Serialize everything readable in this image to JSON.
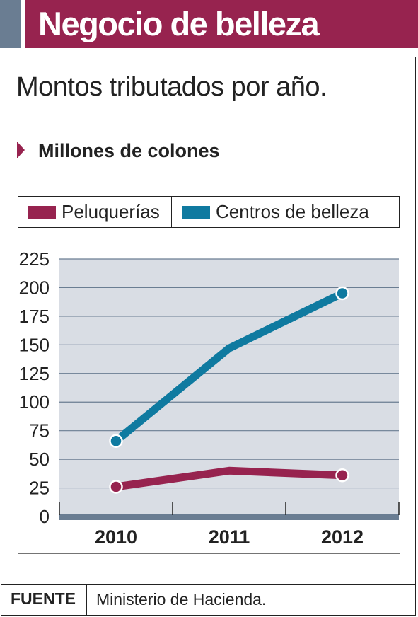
{
  "header": {
    "title": "Negocio de belleza"
  },
  "subtitle": "Montos tributados por año.",
  "unit_label": "Millones de colones",
  "colors": {
    "accent": "#97234f",
    "series_peluquerias": "#97234f",
    "series_centros": "#0f7aa0",
    "plot_bg": "#d9dde4",
    "grid": "#6a7d92"
  },
  "legend": [
    {
      "label": "Peluquerías",
      "color": "#97234f"
    },
    {
      "label": "Centros de belleza",
      "color": "#0f7aa0"
    }
  ],
  "source": {
    "label": "FUENTE",
    "text": "Ministerio de Hacienda."
  },
  "chart_data": {
    "type": "line",
    "title": "Montos tributados por año.",
    "ylabel": "Millones de colones",
    "xlabel": "",
    "categories": [
      "2010",
      "2011",
      "2012"
    ],
    "ylim": [
      0,
      225
    ],
    "yticks": [
      0,
      25,
      50,
      75,
      100,
      125,
      150,
      175,
      200,
      225
    ],
    "grid": true,
    "legend_position": "top",
    "series": [
      {
        "name": "Peluquerías",
        "color": "#97234f",
        "values": [
          26,
          40,
          36
        ],
        "markers": [
          true,
          false,
          true
        ]
      },
      {
        "name": "Centros de belleza",
        "color": "#0f7aa0",
        "values": [
          66,
          147,
          195
        ],
        "markers": [
          true,
          false,
          true
        ]
      }
    ]
  }
}
